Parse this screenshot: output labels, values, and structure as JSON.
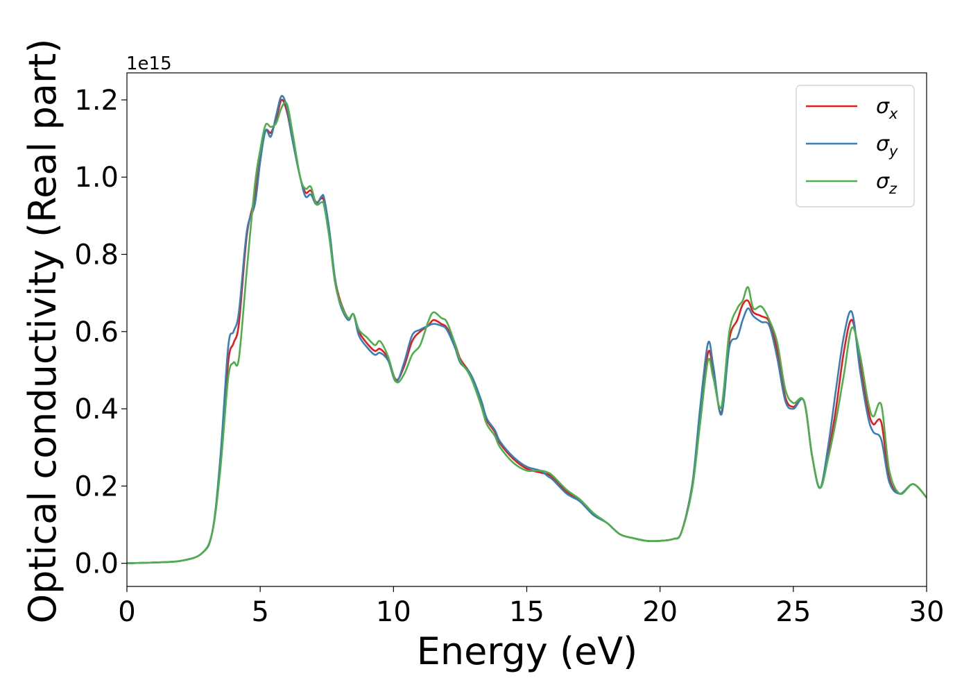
{
  "chart_data": {
    "type": "line",
    "title": "",
    "xlabel": "Energy (eV)",
    "ylabel": "Optical conductivity (Real part)",
    "y_offset_label": "1e15",
    "xlim": [
      0,
      30
    ],
    "ylim": [
      -0.06,
      1.27
    ],
    "grid": false,
    "legend_position": "top-right",
    "xticks": [
      0,
      5,
      10,
      15,
      20,
      25,
      30
    ],
    "xtick_labels": [
      "0",
      "5",
      "10",
      "15",
      "20",
      "25",
      "30"
    ],
    "yticks": [
      0.0,
      0.2,
      0.4,
      0.6,
      0.8,
      1.0,
      1.2
    ],
    "ytick_labels": [
      "0.0",
      "0.2",
      "0.4",
      "0.6",
      "0.8",
      "1.0",
      "1.2"
    ],
    "series": [
      {
        "name": "σx",
        "symbol": "σ",
        "subscript": "x",
        "color": "#e41a1c",
        "points": [
          [
            0,
            0
          ],
          [
            1,
            0.002
          ],
          [
            2,
            0.006
          ],
          [
            2.8,
            0.025
          ],
          [
            3.2,
            0.08
          ],
          [
            3.5,
            0.25
          ],
          [
            3.8,
            0.52
          ],
          [
            4.0,
            0.57
          ],
          [
            4.2,
            0.62
          ],
          [
            4.5,
            0.85
          ],
          [
            4.8,
            0.95
          ],
          [
            5.0,
            1.05
          ],
          [
            5.2,
            1.12
          ],
          [
            5.4,
            1.115
          ],
          [
            5.6,
            1.15
          ],
          [
            5.8,
            1.2
          ],
          [
            6.0,
            1.17
          ],
          [
            6.2,
            1.1
          ],
          [
            6.5,
            1.0
          ],
          [
            6.7,
            0.96
          ],
          [
            6.9,
            0.965
          ],
          [
            7.1,
            0.935
          ],
          [
            7.3,
            0.945
          ],
          [
            7.4,
            0.935
          ],
          [
            7.6,
            0.85
          ],
          [
            7.8,
            0.74
          ],
          [
            8.0,
            0.68
          ],
          [
            8.3,
            0.635
          ],
          [
            8.5,
            0.645
          ],
          [
            8.7,
            0.6
          ],
          [
            9.0,
            0.57
          ],
          [
            9.3,
            0.55
          ],
          [
            9.5,
            0.555
          ],
          [
            9.8,
            0.53
          ],
          [
            10.1,
            0.475
          ],
          [
            10.4,
            0.51
          ],
          [
            10.7,
            0.575
          ],
          [
            11.0,
            0.6
          ],
          [
            11.3,
            0.615
          ],
          [
            11.5,
            0.63
          ],
          [
            11.8,
            0.62
          ],
          [
            12.0,
            0.61
          ],
          [
            12.3,
            0.57
          ],
          [
            12.5,
            0.53
          ],
          [
            12.8,
            0.5
          ],
          [
            13.0,
            0.47
          ],
          [
            13.3,
            0.41
          ],
          [
            13.5,
            0.37
          ],
          [
            13.8,
            0.34
          ],
          [
            14.0,
            0.31
          ],
          [
            14.5,
            0.27
          ],
          [
            15.0,
            0.245
          ],
          [
            15.5,
            0.235
          ],
          [
            15.8,
            0.23
          ],
          [
            16.0,
            0.22
          ],
          [
            16.5,
            0.185
          ],
          [
            17.0,
            0.16
          ],
          [
            17.5,
            0.125
          ],
          [
            18.0,
            0.105
          ],
          [
            18.5,
            0.075
          ],
          [
            19.0,
            0.065
          ],
          [
            19.5,
            0.058
          ],
          [
            20.0,
            0.058
          ],
          [
            20.5,
            0.063
          ],
          [
            20.8,
            0.08
          ],
          [
            21.2,
            0.2
          ],
          [
            21.5,
            0.38
          ],
          [
            21.8,
            0.545
          ],
          [
            22.0,
            0.5
          ],
          [
            22.3,
            0.39
          ],
          [
            22.6,
            0.58
          ],
          [
            22.9,
            0.63
          ],
          [
            23.1,
            0.67
          ],
          [
            23.3,
            0.68
          ],
          [
            23.5,
            0.65
          ],
          [
            23.8,
            0.64
          ],
          [
            24.1,
            0.625
          ],
          [
            24.4,
            0.55
          ],
          [
            24.7,
            0.43
          ],
          [
            25.0,
            0.405
          ],
          [
            25.4,
            0.42
          ],
          [
            25.7,
            0.28
          ],
          [
            26.0,
            0.195
          ],
          [
            26.3,
            0.28
          ],
          [
            26.6,
            0.4
          ],
          [
            26.9,
            0.55
          ],
          [
            27.2,
            0.63
          ],
          [
            27.5,
            0.52
          ],
          [
            27.8,
            0.4
          ],
          [
            28.0,
            0.36
          ],
          [
            28.3,
            0.365
          ],
          [
            28.6,
            0.22
          ],
          [
            29.0,
            0.18
          ],
          [
            29.5,
            0.205
          ],
          [
            30.0,
            0.17
          ]
        ]
      },
      {
        "name": "σy",
        "symbol": "σ",
        "subscript": "y",
        "color": "#377eb8",
        "points": [
          [
            0,
            0
          ],
          [
            1,
            0.002
          ],
          [
            2,
            0.006
          ],
          [
            2.8,
            0.025
          ],
          [
            3.2,
            0.08
          ],
          [
            3.5,
            0.27
          ],
          [
            3.8,
            0.56
          ],
          [
            4.0,
            0.6
          ],
          [
            4.2,
            0.65
          ],
          [
            4.5,
            0.86
          ],
          [
            4.8,
            0.93
          ],
          [
            5.0,
            1.04
          ],
          [
            5.2,
            1.12
          ],
          [
            5.4,
            1.105
          ],
          [
            5.6,
            1.16
          ],
          [
            5.8,
            1.21
          ],
          [
            6.0,
            1.18
          ],
          [
            6.2,
            1.1
          ],
          [
            6.5,
            1.0
          ],
          [
            6.7,
            0.95
          ],
          [
            6.9,
            0.955
          ],
          [
            7.1,
            0.93
          ],
          [
            7.3,
            0.95
          ],
          [
            7.4,
            0.945
          ],
          [
            7.6,
            0.86
          ],
          [
            7.8,
            0.74
          ],
          [
            8.0,
            0.67
          ],
          [
            8.3,
            0.63
          ],
          [
            8.5,
            0.645
          ],
          [
            8.7,
            0.59
          ],
          [
            9.0,
            0.56
          ],
          [
            9.3,
            0.54
          ],
          [
            9.5,
            0.545
          ],
          [
            9.8,
            0.525
          ],
          [
            10.1,
            0.47
          ],
          [
            10.4,
            0.52
          ],
          [
            10.7,
            0.59
          ],
          [
            11.0,
            0.605
          ],
          [
            11.3,
            0.615
          ],
          [
            11.5,
            0.62
          ],
          [
            11.8,
            0.615
          ],
          [
            12.0,
            0.605
          ],
          [
            12.3,
            0.56
          ],
          [
            12.5,
            0.52
          ],
          [
            12.8,
            0.5
          ],
          [
            13.0,
            0.475
          ],
          [
            13.3,
            0.42
          ],
          [
            13.5,
            0.375
          ],
          [
            13.8,
            0.345
          ],
          [
            14.0,
            0.315
          ],
          [
            14.5,
            0.275
          ],
          [
            15.0,
            0.25
          ],
          [
            15.5,
            0.24
          ],
          [
            15.8,
            0.225
          ],
          [
            16.0,
            0.215
          ],
          [
            16.5,
            0.18
          ],
          [
            17.0,
            0.16
          ],
          [
            17.5,
            0.125
          ],
          [
            18.0,
            0.105
          ],
          [
            18.5,
            0.075
          ],
          [
            19.0,
            0.065
          ],
          [
            19.5,
            0.058
          ],
          [
            20.0,
            0.058
          ],
          [
            20.5,
            0.063
          ],
          [
            20.8,
            0.08
          ],
          [
            21.2,
            0.2
          ],
          [
            21.5,
            0.4
          ],
          [
            21.8,
            0.57
          ],
          [
            22.0,
            0.51
          ],
          [
            22.3,
            0.385
          ],
          [
            22.6,
            0.56
          ],
          [
            22.9,
            0.585
          ],
          [
            23.1,
            0.63
          ],
          [
            23.3,
            0.66
          ],
          [
            23.5,
            0.64
          ],
          [
            23.8,
            0.625
          ],
          [
            24.1,
            0.615
          ],
          [
            24.4,
            0.53
          ],
          [
            24.7,
            0.42
          ],
          [
            25.0,
            0.4
          ],
          [
            25.4,
            0.42
          ],
          [
            25.7,
            0.28
          ],
          [
            26.0,
            0.195
          ],
          [
            26.3,
            0.3
          ],
          [
            26.6,
            0.45
          ],
          [
            26.9,
            0.59
          ],
          [
            27.2,
            0.65
          ],
          [
            27.5,
            0.5
          ],
          [
            27.8,
            0.38
          ],
          [
            28.0,
            0.34
          ],
          [
            28.3,
            0.32
          ],
          [
            28.6,
            0.21
          ],
          [
            29.0,
            0.18
          ],
          [
            29.5,
            0.205
          ],
          [
            30.0,
            0.17
          ]
        ]
      },
      {
        "name": "σz",
        "symbol": "σ",
        "subscript": "z",
        "color": "#4daf4a",
        "points": [
          [
            0,
            0
          ],
          [
            1,
            0.002
          ],
          [
            2,
            0.006
          ],
          [
            2.8,
            0.025
          ],
          [
            3.2,
            0.08
          ],
          [
            3.5,
            0.24
          ],
          [
            3.8,
            0.48
          ],
          [
            4.0,
            0.52
          ],
          [
            4.2,
            0.53
          ],
          [
            4.5,
            0.76
          ],
          [
            4.8,
            0.98
          ],
          [
            5.0,
            1.07
          ],
          [
            5.2,
            1.135
          ],
          [
            5.4,
            1.13
          ],
          [
            5.6,
            1.14
          ],
          [
            5.8,
            1.18
          ],
          [
            6.0,
            1.19
          ],
          [
            6.2,
            1.12
          ],
          [
            6.5,
            1.0
          ],
          [
            6.7,
            0.97
          ],
          [
            6.9,
            0.975
          ],
          [
            7.1,
            0.93
          ],
          [
            7.3,
            0.935
          ],
          [
            7.4,
            0.925
          ],
          [
            7.6,
            0.84
          ],
          [
            7.8,
            0.73
          ],
          [
            8.0,
            0.675
          ],
          [
            8.3,
            0.635
          ],
          [
            8.5,
            0.645
          ],
          [
            8.7,
            0.605
          ],
          [
            9.0,
            0.585
          ],
          [
            9.3,
            0.565
          ],
          [
            9.5,
            0.575
          ],
          [
            9.8,
            0.535
          ],
          [
            10.1,
            0.47
          ],
          [
            10.4,
            0.49
          ],
          [
            10.7,
            0.54
          ],
          [
            11.0,
            0.565
          ],
          [
            11.3,
            0.625
          ],
          [
            11.5,
            0.65
          ],
          [
            11.8,
            0.635
          ],
          [
            12.0,
            0.625
          ],
          [
            12.3,
            0.57
          ],
          [
            12.5,
            0.525
          ],
          [
            12.8,
            0.495
          ],
          [
            13.0,
            0.465
          ],
          [
            13.3,
            0.405
          ],
          [
            13.5,
            0.36
          ],
          [
            13.8,
            0.33
          ],
          [
            14.0,
            0.3
          ],
          [
            14.5,
            0.26
          ],
          [
            15.0,
            0.24
          ],
          [
            15.5,
            0.24
          ],
          [
            15.8,
            0.235
          ],
          [
            16.0,
            0.225
          ],
          [
            16.5,
            0.19
          ],
          [
            17.0,
            0.165
          ],
          [
            17.5,
            0.13
          ],
          [
            18.0,
            0.105
          ],
          [
            18.5,
            0.075
          ],
          [
            19.0,
            0.065
          ],
          [
            19.5,
            0.058
          ],
          [
            20.0,
            0.058
          ],
          [
            20.5,
            0.063
          ],
          [
            20.8,
            0.08
          ],
          [
            21.2,
            0.19
          ],
          [
            21.5,
            0.36
          ],
          [
            21.8,
            0.525
          ],
          [
            22.0,
            0.48
          ],
          [
            22.3,
            0.405
          ],
          [
            22.6,
            0.6
          ],
          [
            22.9,
            0.66
          ],
          [
            23.1,
            0.68
          ],
          [
            23.3,
            0.715
          ],
          [
            23.5,
            0.66
          ],
          [
            23.8,
            0.665
          ],
          [
            24.1,
            0.63
          ],
          [
            24.4,
            0.57
          ],
          [
            24.7,
            0.45
          ],
          [
            25.0,
            0.415
          ],
          [
            25.4,
            0.42
          ],
          [
            25.7,
            0.28
          ],
          [
            26.0,
            0.195
          ],
          [
            26.3,
            0.27
          ],
          [
            26.6,
            0.37
          ],
          [
            26.9,
            0.49
          ],
          [
            27.2,
            0.61
          ],
          [
            27.5,
            0.54
          ],
          [
            27.8,
            0.42
          ],
          [
            28.0,
            0.38
          ],
          [
            28.3,
            0.41
          ],
          [
            28.6,
            0.24
          ],
          [
            29.0,
            0.18
          ],
          [
            29.5,
            0.205
          ],
          [
            30.0,
            0.17
          ]
        ]
      }
    ]
  }
}
